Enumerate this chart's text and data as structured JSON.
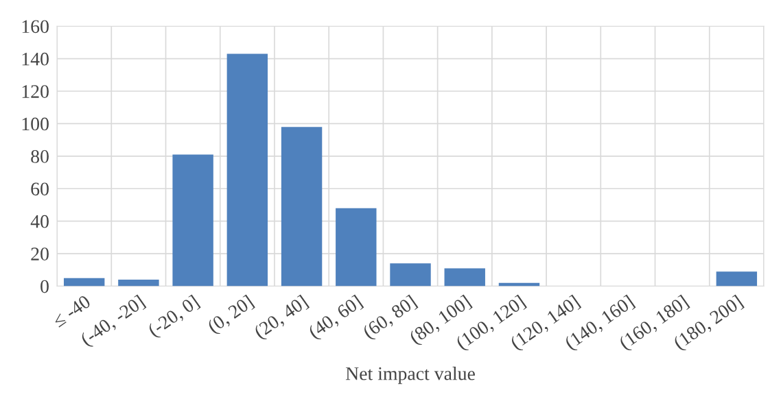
{
  "chart_data": {
    "type": "bar",
    "xlabel": "Net impact value",
    "categories": [
      "≤ -40",
      "(-40, -20]",
      "(-20, 0]",
      "(0, 20]",
      "(20, 40]",
      "(40, 60]",
      "(60, 80]",
      "(80, 100]",
      "(100, 120]",
      "(120, 140]",
      "(140, 160]",
      "(160, 180]",
      "(180, 200]"
    ],
    "values": [
      5,
      4,
      81,
      143,
      98,
      48,
      14,
      11,
      2,
      0,
      0,
      0,
      9
    ],
    "color": "#4f81bd",
    "ylim": [
      0,
      160
    ],
    "yticks": [
      0,
      20,
      40,
      60,
      80,
      100,
      120,
      140,
      160
    ],
    "grid": true
  }
}
